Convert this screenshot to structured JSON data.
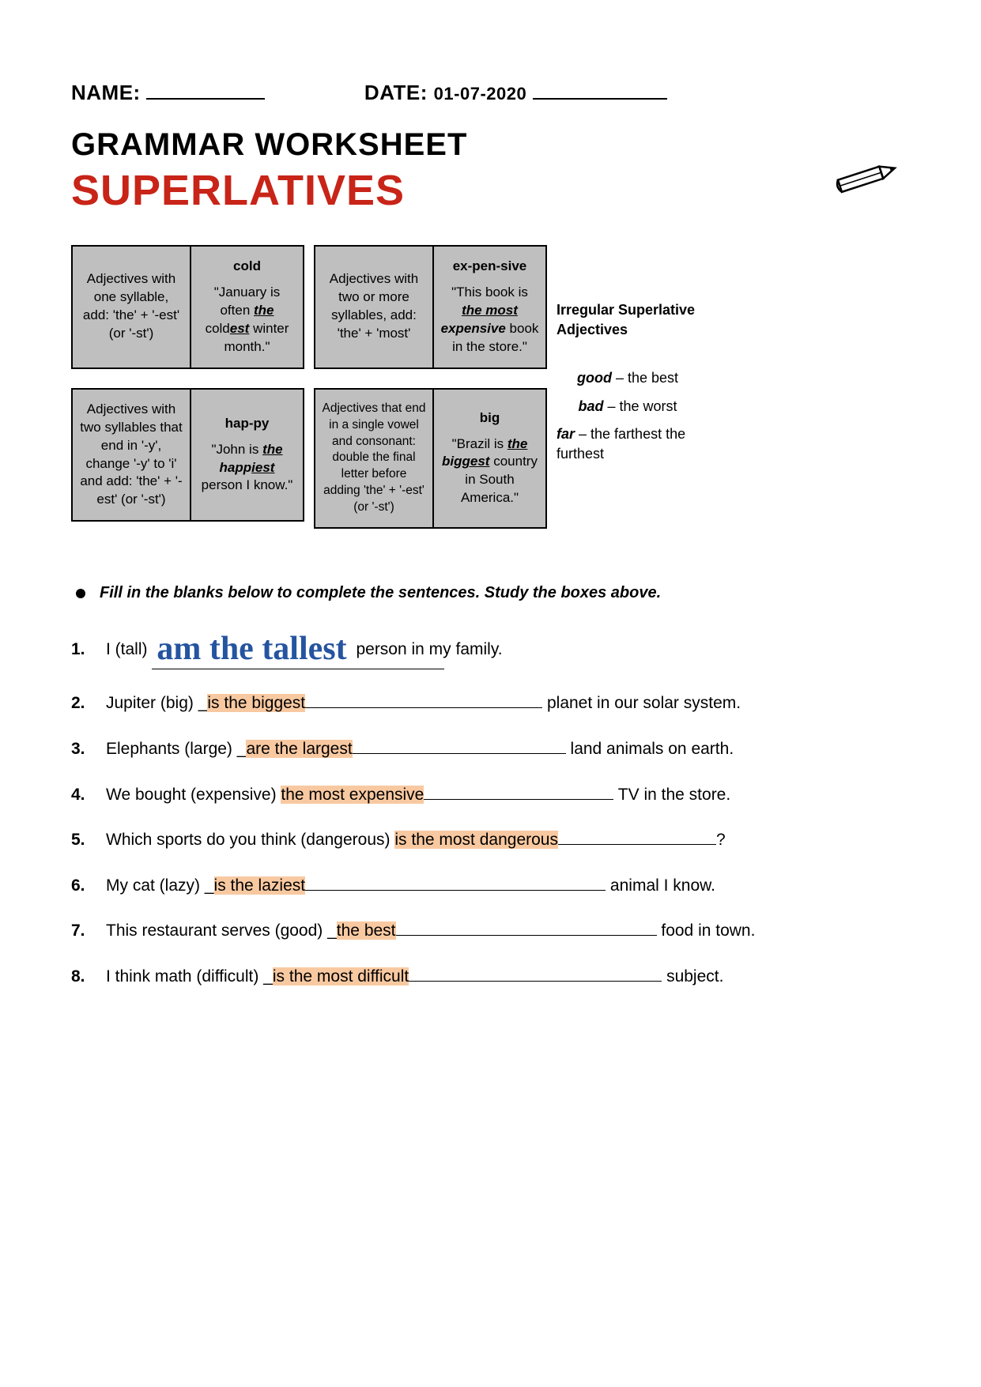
{
  "header": {
    "name_label": "NAME:",
    "date_label": "DATE:",
    "date_value": "01-07-2020"
  },
  "title": {
    "line1": "GRAMMAR WORKSHEET",
    "line2": "SUPERLATIVES",
    "line2_color": "#c82418"
  },
  "rules": {
    "r1": {
      "text": "Adjectives with one syllable, add:\n'the' + '-est'\n(or '-st')",
      "word": "cold",
      "example_pre": "\"January is often ",
      "example_the": "the",
      "example_root": " cold",
      "example_suffix": "est",
      "example_post": " winter month.\""
    },
    "r2": {
      "text": "Adjectives with two or more syllables, add: 'the' + 'most'",
      "word": "ex-pen-sive",
      "example_pre": "\"This book is ",
      "example_the": "the most",
      "example_root": " expensive",
      "example_post": " book in the store.\""
    },
    "r3": {
      "text": "Adjectives with two syllables that end in '-y', change '-y' to 'i' and add: 'the' + '-est' (or '-st')",
      "word": "hap-py",
      "example_pre": "\"John is ",
      "example_the": "the",
      "example_root": " happ",
      "example_suffix": "iest",
      "example_post": " person I know.\""
    },
    "r4": {
      "text": "Adjectives that end in a single vowel and consonant: double the final letter before adding 'the' + '-est' (or '-st')",
      "word": "big",
      "example_pre": "\"Brazil is ",
      "example_the": "the",
      "example_root": " big",
      "example_suffix": "gest",
      "example_post": " country in South America.\""
    }
  },
  "irregular": {
    "heading": "Irregular Superlative Adjectives",
    "items": [
      {
        "adj": "good",
        "sup": " – the best"
      },
      {
        "adj": "bad",
        "sup": " – the worst"
      },
      {
        "adj": "far",
        "sup": " – the farthest the furthest"
      }
    ]
  },
  "instruction": "Fill in the blanks below to complete the sentences.  Study the boxes above.",
  "questions": [
    {
      "num": "1.",
      "pre": "I (tall) ",
      "answer": "am the tallest",
      "post": " person in my family.",
      "style": "handwrite",
      "u_after": 0
    },
    {
      "num": "2.",
      "pre": "Jupiter (big) _",
      "answer": "is the biggest",
      "post": " planet in our solar system.",
      "style": "hl",
      "u_after": 300
    },
    {
      "num": "3.",
      "pre": "Elephants (large) _",
      "answer": "are the largest",
      "post": " land animals on earth.",
      "style": "hl",
      "u_after": 270
    },
    {
      "num": "4.",
      "pre": "We bought (expensive) ",
      "answer": "the most expensive",
      "post": " TV in the store.",
      "style": "hl",
      "u_after": 240
    },
    {
      "num": "5.",
      "pre": "Which sports do you think (dangerous) ",
      "answer": "is the most dangerous",
      "post": "?",
      "style": "hl",
      "u_after": 200
    },
    {
      "num": "6.",
      "pre": "My cat (lazy) _",
      "answer": "is the laziest",
      "post": " animal I know.",
      "style": "hl",
      "u_after": 380
    },
    {
      "num": "7.",
      "pre": "This restaurant serves (good) _",
      "answer": "the best",
      "post": " food in town.",
      "style": "hl",
      "u_after": 330
    },
    {
      "num": "8.",
      "pre": "I think math (difficult) _",
      "answer": "is the most difficult",
      "post": " subject.",
      "style": "hl",
      "u_after": 320
    }
  ],
  "highlight_color": "#f8c9a1"
}
